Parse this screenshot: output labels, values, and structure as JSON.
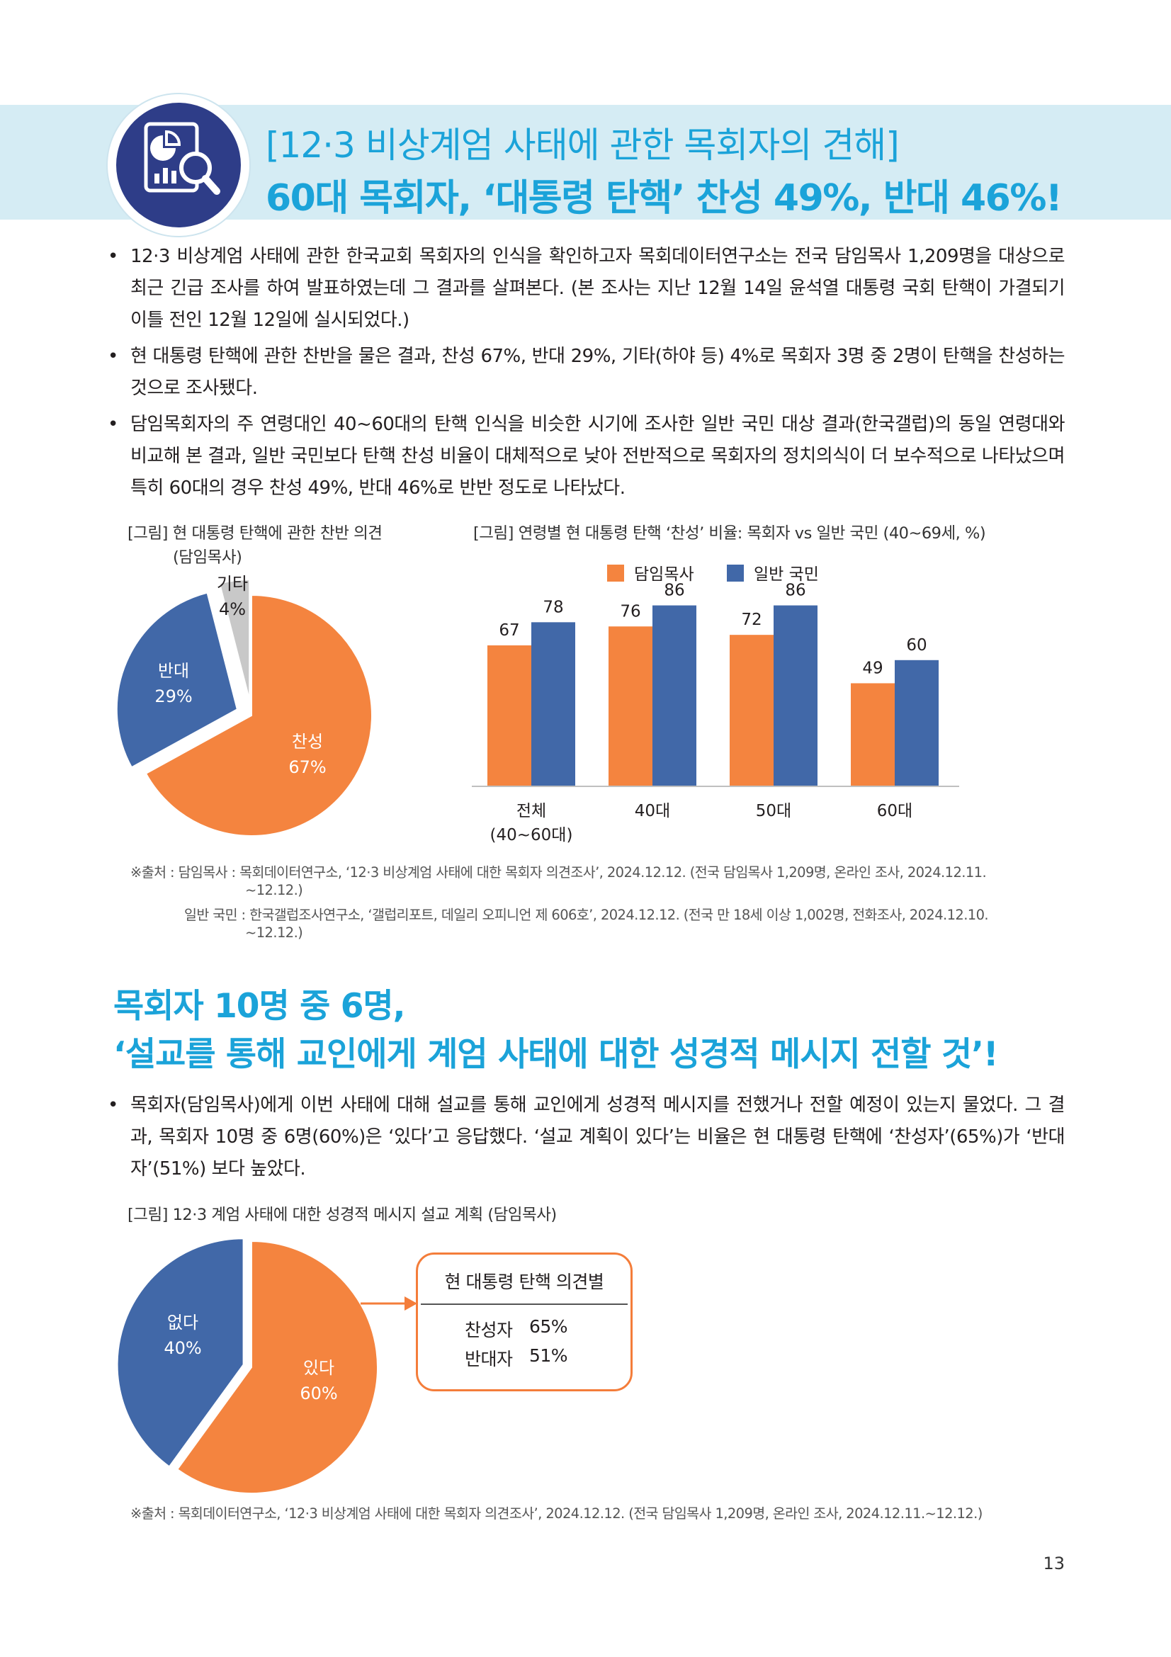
{
  "header": {
    "title_line1": "[12·3 비상계엄 사태에 관한 목회자의 견해]",
    "title_line2": "60대 목회자, ‘대통령 탄핵’ 찬성 49%, 반대 46%!",
    "icon": "report-magnifier-icon",
    "colors": {
      "accent": "#1ba3d9",
      "banner": "#d5ecf4",
      "badge": "#2e3d88"
    }
  },
  "bullets_top": [
    "12·3 비상계엄 사태에 관한 한국교회 목회자의 인식을 확인하고자 목회데이터연구소는 전국 담임목사 1,209명을 대상으로 최근 긴급 조사를 하여 발표하였는데 그 결과를 살펴본다. (본 조사는 지난 12월 14일 윤석열 대통령 국회 탄핵이 가결되기 이틀 전인 12월 12일에 실시되었다.)",
    "현 대통령 탄핵에 관한 찬반을 물은 결과, 찬성 67%, 반대 29%, 기타(하야 등) 4%로 목회자 3명 중 2명이 탄핵을 찬성하는 것으로 조사됐다.",
    "담임목회자의 주 연령대인 40~60대의 탄핵 인식을 비슷한 시기에 조사한 일반 국민 대상 결과(한국갤럽)의 동일 연령대와 비교해 본 결과, 일반 국민보다 탄핵 찬성 비율이 대체적으로 낮아 전반적으로 목회자의 정치의식이 더 보수적으로 나타났으며 특히 60대의 경우 찬성 49%, 반대 46%로 반반 정도로 나타났다."
  ],
  "figure1": {
    "caption_line1": "[그림] 현 대통령 탄핵에 관한 찬반 의견",
    "caption_line2": "(담임목사)"
  },
  "figure2": {
    "caption": "[그림] 연령별 현 대통령 탄핵 ‘찬성’ 비율: 목회자 vs 일반 국민 (40~69세, %)"
  },
  "source1": {
    "line1": "※출처 : 담임목사 : 목회데이터연구소, ‘12·3 비상계엄 사태에 대한 목회자 의견조사’, 2024.12.12. (전국 담임목사 1,209명, 온라인 조사, 2024.12.11.",
    "line2": "~12.12.)",
    "line3": "일반 국민 : 한국갤럽조사연구소, ‘갤럽리포트, 데일리 오피니언 제 606호’, 2024.12.12. (전국 만 18세 이상 1,002명, 전화조사, 2024.12.10.",
    "line4": "~12.12.)"
  },
  "section2": {
    "title_line1": "목회자 10명 중 6명,",
    "title_line2": "‘설교를 통해 교인에게 계엄 사태에 대한 성경적 메시지 전할 것’!",
    "bullet": "목회자(담임목사)에게 이번 사태에 대해 설교를 통해 교인에게 성경적 메시지를 전했거나 전할 예정이 있는지 물었다. 그 결과, 목회자 10명 중 6명(60%)은 ‘있다’고 응답했다. ‘설교 계획이 있다’는 비율은 현 대통령 탄핵에 ‘찬성자’(65%)가 ‘반대자’(51%) 보다 높았다.",
    "caption": "[그림] 12·3 계엄 사태에 대한 성경적 메시지 설교 계획 (담임목사)",
    "callout": {
      "title": "현 대통령 탄핵 의견별",
      "rows": [
        {
          "label": "찬성자",
          "value": "65%"
        },
        {
          "label": "반대자",
          "value": "51%"
        }
      ]
    },
    "source": "※출처 : 목회데이터연구소, ‘12·3 비상계엄 사태에 대한 목회자 의견조사’, 2024.12.12. (전국 담임목사 1,209명, 온라인 조사, 2024.12.11.~12.12.)"
  },
  "page_number": "13",
  "chart_data": [
    {
      "type": "pie",
      "slices": [
        {
          "label": "찬성",
          "value": 67,
          "value_label": "67%",
          "color": "#f4843f"
        },
        {
          "label": "반대",
          "value": 29,
          "value_label": "29%",
          "color": "#4168a8"
        },
        {
          "label": "기타",
          "value": 4,
          "value_label": "4%",
          "color": "#c8c8c8"
        }
      ]
    },
    {
      "type": "bar",
      "categories": [
        "전체\n(40~60대)",
        "40대",
        "50대",
        "60대"
      ],
      "series": [
        {
          "name": "담임목사",
          "color": "#f4843f",
          "values": [
            67,
            76,
            72,
            49
          ]
        },
        {
          "name": "일반 국민",
          "color": "#4168a8",
          "values": [
            78,
            86,
            86,
            60
          ]
        }
      ],
      "ylim": [
        0,
        100
      ],
      "legend": "top",
      "grid": false
    },
    {
      "type": "pie",
      "slices": [
        {
          "label": "있다",
          "value": 60,
          "value_label": "60%",
          "color": "#f4843f"
        },
        {
          "label": "없다",
          "value": 40,
          "value_label": "40%",
          "color": "#4168a8"
        }
      ]
    }
  ]
}
